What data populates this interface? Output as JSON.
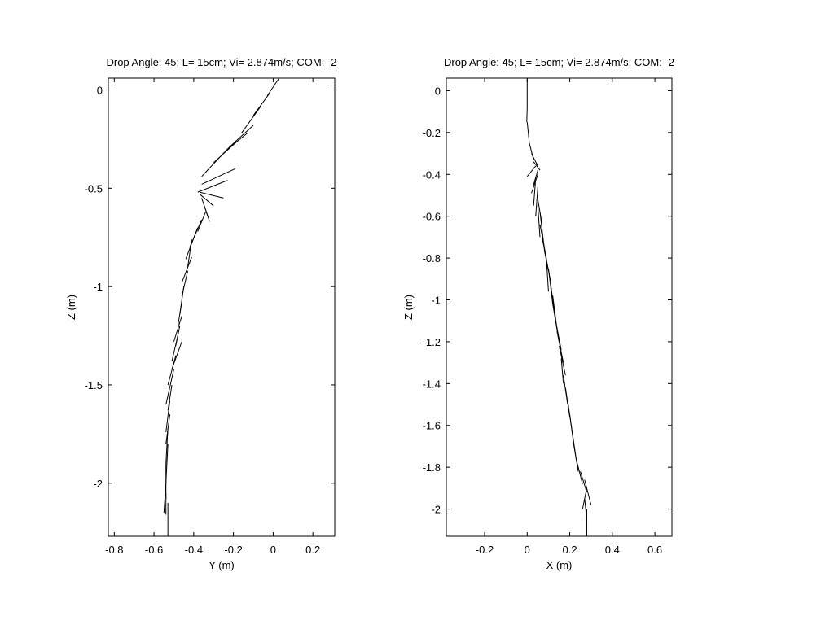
{
  "chart_data": [
    {
      "type": "line",
      "title": "Drop Angle: 45; L= 15cm; Vi= 2.874m/s; COM: -2",
      "xlabel": "Y (m)",
      "ylabel": "Z (m)",
      "xlim": [
        -0.83,
        0.31
      ],
      "ylim": [
        -2.27,
        0.06
      ],
      "xticks": [
        -0.8,
        -0.6,
        -0.4,
        -0.2,
        0,
        0.2
      ],
      "xtick_labels": [
        "-0.8",
        "-0.6",
        "-0.4",
        "-0.2",
        "0",
        "0.2"
      ],
      "yticks": [
        0,
        -0.5,
        -1,
        -1.5,
        -2
      ],
      "ytick_labels": [
        "0",
        "-0.5",
        "-1",
        "-1.5",
        "-2"
      ],
      "grid": false,
      "series": [
        {
          "values_desc": "stick segments",
          "segments": [
            [
              0.03,
              0.06,
              -0.03,
              -0.03
            ],
            [
              -0.02,
              -0.02,
              -0.1,
              -0.13
            ],
            [
              -0.06,
              -0.08,
              -0.16,
              -0.22
            ],
            [
              -0.1,
              -0.18,
              -0.22,
              -0.29
            ],
            [
              -0.13,
              -0.22,
              -0.24,
              -0.31
            ],
            [
              -0.18,
              -0.26,
              -0.3,
              -0.37
            ],
            [
              -0.22,
              -0.29,
              -0.36,
              -0.44
            ],
            [
              -0.19,
              -0.4,
              -0.36,
              -0.48
            ],
            [
              -0.23,
              -0.46,
              -0.38,
              -0.52
            ],
            [
              -0.37,
              -0.52,
              -0.25,
              -0.55
            ],
            [
              -0.37,
              -0.53,
              -0.3,
              -0.59
            ],
            [
              -0.36,
              -0.55,
              -0.33,
              -0.64
            ],
            [
              -0.35,
              -0.58,
              -0.32,
              -0.67
            ],
            [
              -0.34,
              -0.62,
              -0.38,
              -0.72
            ],
            [
              -0.36,
              -0.66,
              -0.42,
              -0.8
            ],
            [
              -0.38,
              -0.7,
              -0.44,
              -0.86
            ],
            [
              -0.41,
              -0.76,
              -0.43,
              -0.9
            ],
            [
              -0.41,
              -0.85,
              -0.46,
              -0.98
            ],
            [
              -0.43,
              -0.92,
              -0.46,
              -1.05
            ],
            [
              -0.45,
              -1.0,
              -0.47,
              -1.14
            ],
            [
              -0.46,
              -1.08,
              -0.48,
              -1.2
            ],
            [
              -0.46,
              -1.15,
              -0.5,
              -1.28
            ],
            [
              -0.47,
              -1.2,
              -0.49,
              -1.3
            ],
            [
              -0.48,
              -1.25,
              -0.51,
              -1.38
            ],
            [
              -0.46,
              -1.28,
              -0.51,
              -1.42
            ],
            [
              -0.49,
              -1.35,
              -0.53,
              -1.5
            ],
            [
              -0.5,
              -1.42,
              -0.54,
              -1.6
            ],
            [
              -0.51,
              -1.5,
              -0.53,
              -1.63
            ],
            [
              -0.52,
              -1.58,
              -0.54,
              -1.74
            ],
            [
              -0.52,
              -1.65,
              -0.54,
              -1.8
            ],
            [
              -0.53,
              -1.72,
              -0.54,
              -1.9
            ],
            [
              -0.53,
              -1.8,
              -0.54,
              -2.0
            ],
            [
              -0.54,
              -1.9,
              -0.54,
              -2.08
            ],
            [
              -0.54,
              -2.0,
              -0.55,
              -2.15
            ],
            [
              -0.54,
              -2.05,
              -0.54,
              -2.16
            ],
            [
              -0.53,
              -2.1,
              -0.53,
              -2.27
            ]
          ]
        }
      ]
    },
    {
      "type": "line",
      "title": "Drop Angle: 45; L= 15cm; Vi= 2.874m/s; COM: -2",
      "xlabel": "X (m)",
      "ylabel": "Z (m)",
      "xlim": [
        -0.38,
        0.68
      ],
      "ylim": [
        -2.13,
        0.06
      ],
      "xticks": [
        -0.2,
        0,
        0.2,
        0.4,
        0.6
      ],
      "xtick_labels": [
        "-0.2",
        "0",
        "0.2",
        "0.4",
        "0.6"
      ],
      "yticks": [
        0,
        -0.2,
        -0.4,
        -0.6,
        -0.8,
        -1,
        -1.2,
        -1.4,
        -1.6,
        -1.8,
        -2
      ],
      "ytick_labels": [
        "0",
        "-0.2",
        "-0.4",
        "-0.6",
        "-0.8",
        "-1",
        "-1.2",
        "-1.4",
        "-1.6",
        "-1.8",
        "-2"
      ],
      "grid": false,
      "series": [
        {
          "values_desc": "stick segments",
          "segments": [
            [
              0.0,
              0.06,
              0.0,
              -0.08
            ],
            [
              0.0,
              -0.08,
              -0.002,
              -0.15
            ],
            [
              0.0,
              -0.15,
              0.01,
              -0.25
            ],
            [
              0.01,
              -0.25,
              0.03,
              -0.33
            ],
            [
              0.02,
              -0.3,
              0.05,
              -0.36
            ],
            [
              0.03,
              -0.34,
              0.06,
              -0.38
            ],
            [
              0.04,
              -0.36,
              0.0,
              -0.41
            ],
            [
              0.05,
              -0.38,
              0.03,
              -0.45
            ],
            [
              0.05,
              -0.4,
              0.02,
              -0.49
            ],
            [
              0.04,
              -0.42,
              0.03,
              -0.55
            ],
            [
              0.05,
              -0.46,
              0.04,
              -0.6
            ],
            [
              0.05,
              -0.52,
              0.07,
              -0.64
            ],
            [
              0.05,
              -0.55,
              0.06,
              -0.7
            ],
            [
              0.06,
              -0.58,
              0.08,
              -0.75
            ],
            [
              0.06,
              -0.64,
              0.09,
              -0.8
            ],
            [
              0.07,
              -0.7,
              0.1,
              -0.86
            ],
            [
              0.08,
              -0.76,
              0.11,
              -0.91
            ],
            [
              0.09,
              -0.8,
              0.1,
              -0.96
            ],
            [
              0.1,
              -0.85,
              0.12,
              -1.02
            ],
            [
              0.11,
              -0.92,
              0.13,
              -1.08
            ],
            [
              0.12,
              -0.98,
              0.14,
              -1.14
            ],
            [
              0.12,
              -1.02,
              0.15,
              -1.2
            ],
            [
              0.13,
              -1.08,
              0.16,
              -1.24
            ],
            [
              0.14,
              -1.15,
              0.17,
              -1.3
            ],
            [
              0.15,
              -1.22,
              0.18,
              -1.36
            ],
            [
              0.16,
              -1.28,
              0.17,
              -1.4
            ],
            [
              0.17,
              -1.36,
              0.19,
              -1.5
            ],
            [
              0.18,
              -1.42,
              0.2,
              -1.56
            ],
            [
              0.19,
              -1.48,
              0.21,
              -1.62
            ],
            [
              0.2,
              -1.55,
              0.22,
              -1.7
            ],
            [
              0.21,
              -1.62,
              0.23,
              -1.76
            ],
            [
              0.22,
              -1.7,
              0.24,
              -1.82
            ],
            [
              0.23,
              -1.76,
              0.26,
              -1.88
            ],
            [
              0.25,
              -1.82,
              0.28,
              -1.92
            ],
            [
              0.27,
              -1.86,
              0.3,
              -1.98
            ],
            [
              0.28,
              -1.9,
              0.26,
              -2.0
            ],
            [
              0.27,
              -1.95,
              0.28,
              -2.05
            ],
            [
              0.28,
              -2.0,
              0.28,
              -2.13
            ]
          ]
        }
      ]
    }
  ]
}
